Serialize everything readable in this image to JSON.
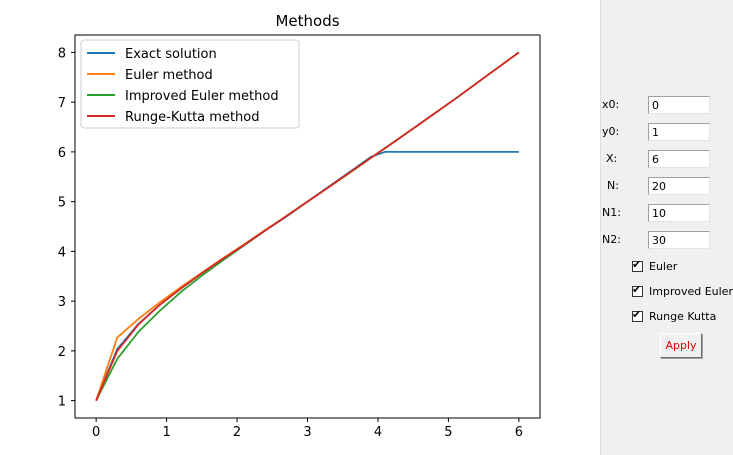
{
  "chart_data": {
    "type": "line",
    "title": "Methods",
    "xlabel": "",
    "ylabel": "",
    "xlim": [
      -0.3,
      6.3
    ],
    "ylim": [
      0.65,
      8.35
    ],
    "xticks": [
      0,
      1,
      2,
      3,
      4,
      5,
      6
    ],
    "yticks": [
      1,
      2,
      3,
      4,
      5,
      6,
      7,
      8
    ],
    "grid": false,
    "legend_position": "top-left",
    "series": [
      {
        "name": "Exact solution",
        "color": "#1f77b4",
        "x": [
          0,
          0.3,
          0.6,
          0.9,
          1.2,
          1.5,
          1.8,
          2.1,
          2.4,
          2.7,
          3.0,
          3.3,
          3.6,
          3.9,
          4.1,
          4.5,
          5.0,
          5.5,
          6.0
        ],
        "y": [
          1.0,
          2.04,
          2.54,
          2.92,
          3.25,
          3.56,
          3.85,
          4.12,
          4.42,
          4.7,
          5.0,
          5.3,
          5.6,
          5.9,
          6.0,
          6.0,
          6.0,
          6.0,
          6.0
        ]
      },
      {
        "name": "Euler method",
        "color": "#ff7f0e",
        "x": [
          0,
          0.3,
          0.6,
          0.9,
          1.2,
          1.5,
          1.8,
          2.1,
          2.4,
          2.7,
          3.0,
          3.3,
          3.6,
          3.9,
          4.2,
          4.5,
          4.8,
          5.1,
          5.4,
          5.7,
          6.0
        ],
        "y": [
          1.0,
          2.27,
          2.64,
          2.97,
          3.28,
          3.57,
          3.86,
          4.14,
          4.43,
          4.71,
          5.0,
          5.29,
          5.58,
          5.88,
          6.17,
          6.47,
          6.77,
          7.07,
          7.38,
          7.69,
          8.0
        ]
      },
      {
        "name": "Improved Euler method",
        "color": "#2ca02c",
        "x": [
          0,
          0.3,
          0.6,
          0.9,
          1.2,
          1.5,
          1.8,
          2.1,
          2.4,
          2.7,
          3.0,
          3.3,
          3.6,
          3.9,
          4.2,
          4.5,
          4.8,
          5.1,
          5.4,
          5.7,
          6.0
        ],
        "y": [
          1.0,
          1.84,
          2.38,
          2.8,
          3.18,
          3.51,
          3.82,
          4.12,
          4.42,
          4.71,
          5.0,
          5.29,
          5.58,
          5.88,
          6.17,
          6.47,
          6.77,
          7.07,
          7.38,
          7.69,
          8.0
        ]
      },
      {
        "name": "Runge-Kutta method",
        "color": "#d62728",
        "x": [
          0,
          0.3,
          0.6,
          0.9,
          1.2,
          1.5,
          1.8,
          2.1,
          2.4,
          2.7,
          3.0,
          3.3,
          3.6,
          3.9,
          4.2,
          4.5,
          4.8,
          5.1,
          5.4,
          5.7,
          6.0
        ],
        "y": [
          1.0,
          2.0,
          2.53,
          2.92,
          3.25,
          3.56,
          3.85,
          4.13,
          4.42,
          4.71,
          5.0,
          5.29,
          5.59,
          5.88,
          6.17,
          6.47,
          6.77,
          7.07,
          7.38,
          7.69,
          8.0
        ]
      }
    ]
  },
  "panel": {
    "fields": [
      {
        "label": "x0:",
        "value": "0"
      },
      {
        "label": "y0:",
        "value": "1"
      },
      {
        "label": "X:",
        "value": "6"
      },
      {
        "label": "N:",
        "value": "20"
      },
      {
        "label": "N1:",
        "value": "10"
      },
      {
        "label": "N2:",
        "value": "30"
      }
    ],
    "checkboxes": [
      {
        "label": "Euler",
        "checked": true,
        "mark": "✔"
      },
      {
        "label": "Improved Euler",
        "checked": true,
        "mark": "✔"
      },
      {
        "label": "Runge Kutta",
        "checked": true,
        "mark": "✔"
      }
    ],
    "apply_label": "Apply"
  }
}
